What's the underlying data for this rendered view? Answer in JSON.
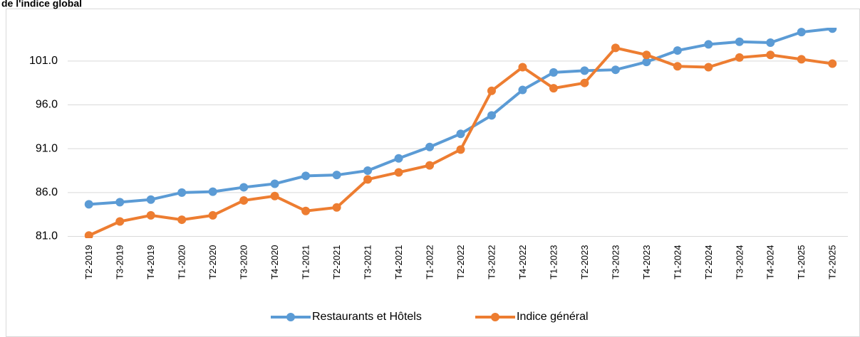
{
  "chart_data": {
    "type": "line",
    "title": "de l'indice global",
    "categories": [
      "T2-2019",
      "T3-2019",
      "T4-2019",
      "T1-2020",
      "T2-2020",
      "T3-2020",
      "T4-2020",
      "T1-2021",
      "T2-2021",
      "T3-2021",
      "T4-2021",
      "T1-2022",
      "T2-2022",
      "T3-2022",
      "T4-2022",
      "T1-2023",
      "T2-2023",
      "T3-2023",
      "T4-2023",
      "T1-2024",
      "T2-2024",
      "T3-2024",
      "T4-2024",
      "T1-2025",
      "T2-2025"
    ],
    "series": [
      {
        "name": "Restaurants et Hôtels",
        "color": "#5b9bd5",
        "values": [
          84.66,
          84.9,
          85.2,
          86.0,
          86.1,
          86.6,
          87.0,
          87.9,
          88.0,
          88.5,
          89.9,
          91.2,
          92.7,
          94.8,
          97.7,
          99.7,
          99.9,
          100.0,
          100.9,
          102.2,
          102.9,
          103.2,
          103.1,
          104.3,
          104.7
        ]
      },
      {
        "name": "Indice général",
        "color": "#ed7d31",
        "values": [
          81.1,
          82.7,
          83.4,
          82.9,
          83.4,
          85.1,
          85.6,
          83.9,
          84.3,
          87.5,
          88.3,
          89.1,
          90.9,
          97.6,
          100.3,
          97.9,
          98.5,
          102.5,
          101.7,
          100.4,
          100.3,
          101.4,
          101.7,
          101.2,
          100.7
        ]
      }
    ],
    "ylim": [
      81,
      104.8
    ],
    "yticks": [
      {
        "value": 81,
        "label": "81.0"
      },
      {
        "value": 86,
        "label": "86.0"
      },
      {
        "value": 91,
        "label": "91.0"
      },
      {
        "value": 96,
        "label": "96.0"
      },
      {
        "value": 101,
        "label": "101.0"
      }
    ],
    "grid": true,
    "legend": "bottom"
  }
}
